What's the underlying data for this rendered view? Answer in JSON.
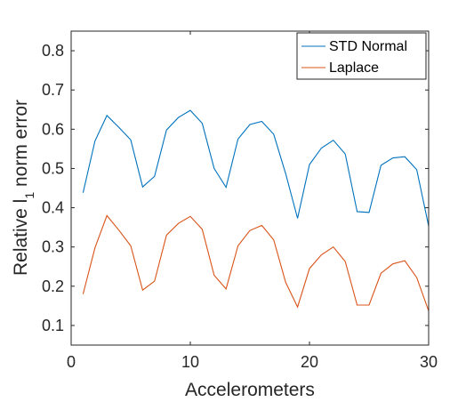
{
  "chart_data": {
    "type": "line",
    "xlabel": "Accelerometers",
    "ylabel_main": "Relative l",
    "ylabel_sub": "1",
    "ylabel_rest": " norm error",
    "xlim": [
      0,
      30
    ],
    "ylim": [
      0.05,
      0.85
    ],
    "xticks": [
      0,
      10,
      20,
      30
    ],
    "yticks": [
      0.1,
      0.2,
      0.3,
      0.4,
      0.5,
      0.6,
      0.7,
      0.8
    ],
    "grid": false,
    "legend_position": "top-right",
    "x": [
      1,
      2,
      3,
      4,
      5,
      6,
      7,
      8,
      9,
      10,
      11,
      12,
      13,
      14,
      15,
      16,
      17,
      18,
      19,
      20,
      21,
      22,
      23,
      24,
      25,
      26,
      27,
      28,
      29,
      30
    ],
    "series": [
      {
        "name": "STD Normal",
        "color": "#0072BD",
        "values": [
          0.438,
          0.57,
          0.635,
          0.605,
          0.573,
          0.453,
          0.48,
          0.598,
          0.63,
          0.648,
          0.615,
          0.5,
          0.452,
          0.575,
          0.612,
          0.62,
          0.587,
          0.487,
          0.373,
          0.51,
          0.552,
          0.572,
          0.537,
          0.39,
          0.388,
          0.508,
          0.527,
          0.53,
          0.497,
          0.353
        ]
      },
      {
        "name": "Laplace",
        "color": "#D95319",
        "values": [
          0.18,
          0.298,
          0.38,
          0.343,
          0.303,
          0.19,
          0.213,
          0.33,
          0.36,
          0.378,
          0.345,
          0.228,
          0.193,
          0.303,
          0.342,
          0.355,
          0.318,
          0.21,
          0.147,
          0.245,
          0.28,
          0.3,
          0.263,
          0.152,
          0.152,
          0.233,
          0.257,
          0.265,
          0.222,
          0.137
        ]
      }
    ]
  }
}
